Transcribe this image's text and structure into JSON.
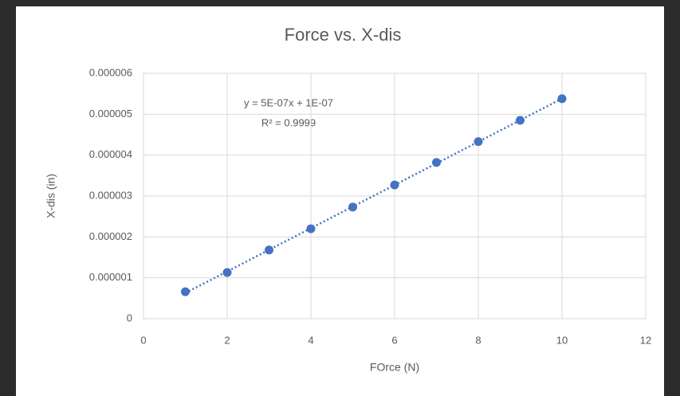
{
  "chart_data": {
    "type": "scatter",
    "title": "Force vs. X-dis",
    "xlabel": "FOrce (N)",
    "ylabel": "X-dis (in)",
    "series": [
      {
        "name": "X-dis (in)",
        "color": "#4472c4",
        "x": [
          1,
          2,
          3,
          4,
          5,
          6,
          7,
          8,
          9,
          10
        ],
        "values": [
          6.6e-07,
          1.13e-06,
          1.68e-06,
          2.2e-06,
          2.73e-06,
          3.27e-06,
          3.82e-06,
          4.33e-06,
          4.85e-06,
          5.38e-06
        ]
      }
    ],
    "trendline": {
      "type": "linear",
      "style": "dotted",
      "equation": "y = 5E-07x + 1E-07",
      "r2": "R² = 0.9999"
    },
    "xlim": [
      0,
      12
    ],
    "xticks": [
      0,
      2,
      4,
      6,
      8,
      10,
      12
    ],
    "ylim": [
      0,
      6e-06
    ],
    "yticks": [
      0,
      {
        "value": 1e-06,
        "label": "0.000001"
      },
      {
        "value": 2e-06,
        "label": "0.000002"
      },
      {
        "value": 3e-06,
        "label": "0.000003"
      },
      {
        "value": 4e-06,
        "label": "0.000004"
      },
      {
        "value": 5e-06,
        "label": "0.000005"
      },
      {
        "value": 6e-06,
        "label": "0.000006"
      }
    ],
    "grid": true
  }
}
